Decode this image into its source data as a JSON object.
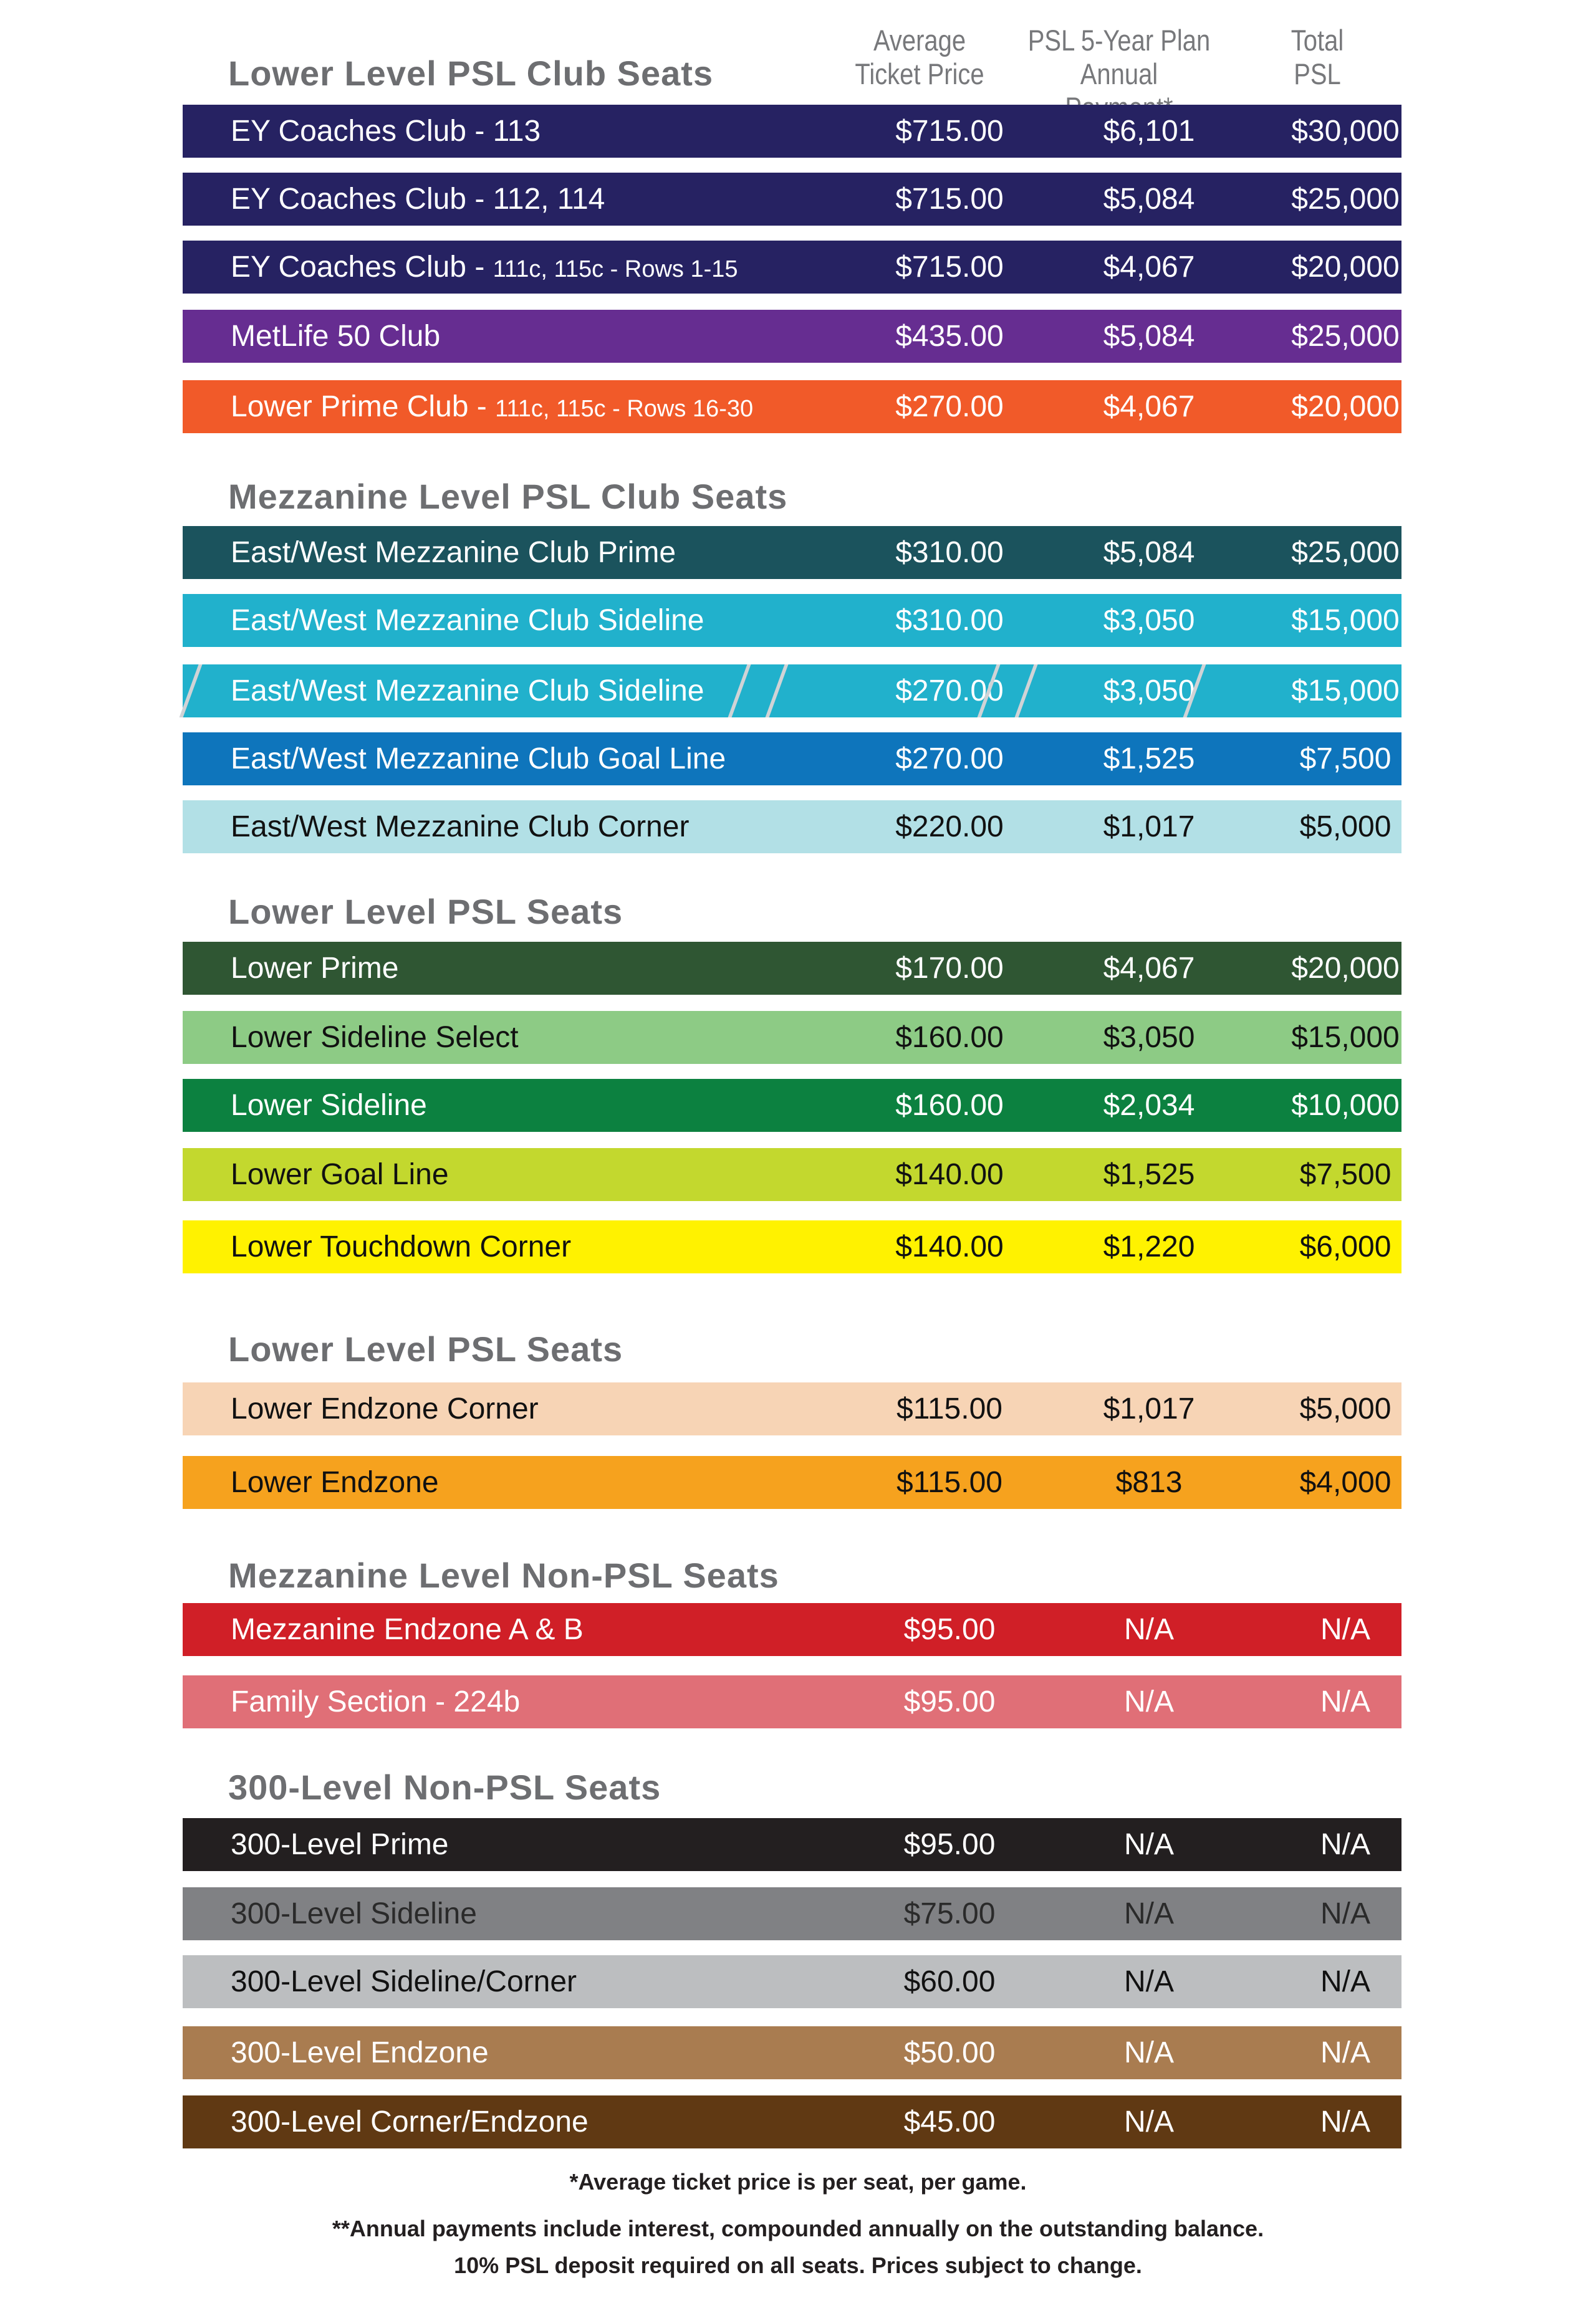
{
  "headers": {
    "avg_price": [
      "Average",
      "Ticket Price"
    ],
    "annual_payment": [
      "PSL 5-Year Plan",
      "Annual Payment*"
    ],
    "total_psl": [
      "Total",
      "PSL"
    ]
  },
  "sections": [
    {
      "title": "Lower Level PSL Club Seats",
      "rows": [
        {
          "label": "EY Coaches Club - 113",
          "price": "$715.00",
          "payment": "$6,101",
          "total": "$30,000",
          "bg": "#262262",
          "fg": "#ffffff"
        },
        {
          "label": "EY Coaches Club - 112, 114",
          "price": "$715.00",
          "payment": "$5,084",
          "total": "$25,000",
          "bg": "#262262",
          "fg": "#ffffff"
        },
        {
          "label": "EY Coaches Club - ",
          "sublabel": "111c, 115c - Rows 1-15",
          "price": "$715.00",
          "payment": "$4,067",
          "total": "$20,000",
          "bg": "#262262",
          "fg": "#ffffff"
        },
        {
          "label": "MetLife 50 Club",
          "price": "$435.00",
          "payment": "$5,084",
          "total": "$25,000",
          "bg": "#662d91",
          "fg": "#ffffff"
        },
        {
          "label": "Lower Prime Club - ",
          "sublabel": "111c, 115c - Rows 16-30",
          "price": "$270.00",
          "payment": "$4,067",
          "total": "$20,000",
          "bg": "#f15a29",
          "fg": "#ffffff"
        }
      ]
    },
    {
      "title": "Mezzanine Level PSL Club Seats",
      "rows": [
        {
          "label": "East/West Mezzanine Club Prime",
          "price": "$310.00",
          "payment": "$5,084",
          "total": "$25,000",
          "bg": "#1b535d",
          "fg": "#ffffff"
        },
        {
          "label": "East/West Mezzanine Club Sideline",
          "price": "$310.00",
          "payment": "$3,050",
          "total": "$15,000",
          "bg": "#21b1cc",
          "fg": "#ffffff"
        },
        {
          "label": "East/West Mezzanine Club Sideline",
          "price": "$270.00",
          "payment": "$3,050",
          "total": "$15,000",
          "bg": "#21b1cc",
          "fg": "#ffffff",
          "striped": true
        },
        {
          "label": "East/West Mezzanine Club Goal Line",
          "price": "$270.00",
          "payment": "$1,525",
          "total": "$7,500",
          "bg": "#0e75bc",
          "fg": "#ffffff"
        },
        {
          "label": "East/West Mezzanine Club Corner",
          "price": "$220.00",
          "payment": "$1,017",
          "total": "$5,000",
          "bg": "#b2e0e6",
          "fg": "#111111"
        }
      ]
    },
    {
      "title": "Lower Level PSL Seats",
      "rows": [
        {
          "label": "Lower Prime",
          "price": "$170.00",
          "payment": "$4,067",
          "total": "$20,000",
          "bg": "#2f5633",
          "fg": "#ffffff"
        },
        {
          "label": "Lower Sideline Select",
          "price": "$160.00",
          "payment": "$3,050",
          "total": "$15,000",
          "bg": "#8dcb85",
          "fg": "#111111"
        },
        {
          "label": "Lower Sideline",
          "price": "$160.00",
          "payment": "$2,034",
          "total": "$10,000",
          "bg": "#0c8140",
          "fg": "#ffffff"
        },
        {
          "label": "Lower Goal Line",
          "price": "$140.00",
          "payment": "$1,525",
          "total": "$7,500",
          "bg": "#c3d82e",
          "fg": "#111111"
        },
        {
          "label": "Lower Touchdown Corner",
          "price": "$140.00",
          "payment": "$1,220",
          "total": "$6,000",
          "bg": "#fff200",
          "fg": "#111111"
        }
      ]
    },
    {
      "title": "Lower Level PSL Seats",
      "rows": [
        {
          "label": "Lower Endzone Corner",
          "price": "$115.00",
          "payment": "$1,017",
          "total": "$5,000",
          "bg": "#f7d4b5",
          "fg": "#111111"
        },
        {
          "label": "Lower Endzone",
          "price": "$115.00",
          "payment": "$813",
          "total": "$4,000",
          "bg": "#f6a21e",
          "fg": "#111111"
        }
      ]
    },
    {
      "title": "Mezzanine Level Non-PSL Seats",
      "rows": [
        {
          "label": "Mezzanine Endzone A & B",
          "price": "$95.00",
          "payment": "N/A",
          "total": "N/A",
          "bg": "#d01f27",
          "fg": "#ffffff"
        },
        {
          "label": "Family Section - 224b",
          "price": "$95.00",
          "payment": "N/A",
          "total": "N/A",
          "bg": "#e06f77",
          "fg": "#ffffff"
        }
      ]
    },
    {
      "title": "300-Level Non-PSL Seats",
      "rows": [
        {
          "label": "300-Level Prime",
          "price": "$95.00",
          "payment": "N/A",
          "total": "N/A",
          "bg": "#231f20",
          "fg": "#ffffff"
        },
        {
          "label": "300-Level Sideline",
          "price": "$75.00",
          "payment": "N/A",
          "total": "N/A",
          "bg": "#808184",
          "fg": "#2a2a2a"
        },
        {
          "label": "300-Level Sideline/Corner",
          "price": "$60.00",
          "payment": "N/A",
          "total": "N/A",
          "bg": "#bcbec0",
          "fg": "#111111"
        },
        {
          "label": "300-Level Endzone",
          "price": "$50.00",
          "payment": "N/A",
          "total": "N/A",
          "bg": "#a97c50",
          "fg": "#ffffff"
        },
        {
          "label": "300-Level Corner/Endzone",
          "price": "$45.00",
          "payment": "N/A",
          "total": "N/A",
          "bg": "#603913",
          "fg": "#ffffff"
        }
      ]
    }
  ],
  "footnotes": [
    "*Average ticket price is per seat, per game.",
    "**Annual payments include interest, compounded annually on the outstanding balance.",
    "10% PSL deposit required on all seats. Prices subject to change."
  ]
}
